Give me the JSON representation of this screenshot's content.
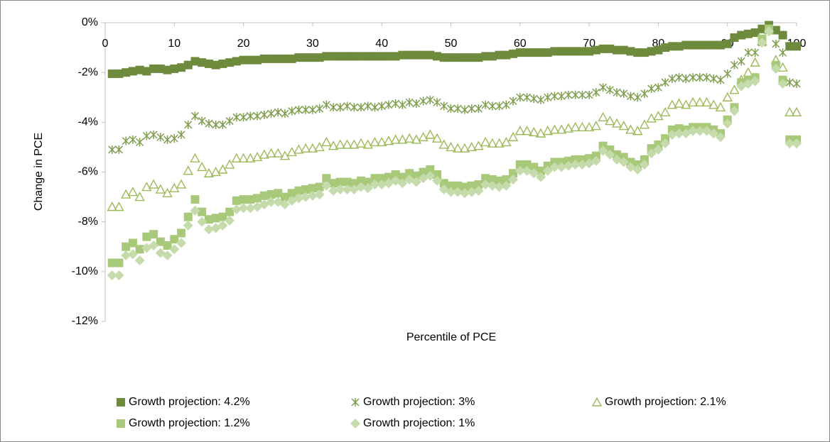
{
  "chart_data": {
    "type": "scatter",
    "y_label": "Change in PCE",
    "x_label": "Percentile of PCE",
    "xlim": [
      0,
      100
    ],
    "xticks": [
      0,
      10,
      20,
      30,
      40,
      50,
      60,
      70,
      80,
      90,
      100
    ],
    "ylim": [
      -12,
      0
    ],
    "yticks": [
      {
        "value": 0,
        "label": "0%"
      },
      {
        "value": -2,
        "label": "-2%"
      },
      {
        "value": -4,
        "label": "-4%"
      },
      {
        "value": -6,
        "label": "-6%"
      },
      {
        "value": -8,
        "label": "-8%"
      },
      {
        "value": -10,
        "label": "-10%"
      },
      {
        "value": -12,
        "label": "-12%"
      }
    ],
    "grid": false,
    "legend": "bottom",
    "x": [
      1,
      2,
      3,
      4,
      5,
      6,
      7,
      8,
      9,
      10,
      11,
      12,
      13,
      14,
      15,
      16,
      17,
      18,
      19,
      20,
      21,
      22,
      23,
      24,
      25,
      26,
      27,
      28,
      29,
      30,
      31,
      32,
      33,
      34,
      35,
      36,
      37,
      38,
      39,
      40,
      41,
      42,
      43,
      44,
      45,
      46,
      47,
      48,
      49,
      50,
      51,
      52,
      53,
      54,
      55,
      56,
      57,
      58,
      59,
      60,
      61,
      62,
      63,
      64,
      65,
      66,
      67,
      68,
      69,
      70,
      71,
      72,
      73,
      74,
      75,
      76,
      77,
      78,
      79,
      80,
      81,
      82,
      83,
      84,
      85,
      86,
      87,
      88,
      89,
      90,
      91,
      92,
      93,
      94,
      95,
      96,
      97,
      98,
      99,
      100
    ],
    "series": [
      {
        "name": "Growth projection: 4.2%",
        "color": "#6e8b3d",
        "marker": "square",
        "values": [
          -2.05,
          -2.05,
          -2.0,
          -1.95,
          -1.9,
          -1.95,
          -1.85,
          -1.85,
          -1.9,
          -1.85,
          -1.8,
          -1.7,
          -1.55,
          -1.6,
          -1.65,
          -1.7,
          -1.65,
          -1.6,
          -1.55,
          -1.5,
          -1.5,
          -1.5,
          -1.45,
          -1.45,
          -1.45,
          -1.45,
          -1.45,
          -1.4,
          -1.4,
          -1.4,
          -1.4,
          -1.35,
          -1.35,
          -1.35,
          -1.35,
          -1.35,
          -1.35,
          -1.35,
          -1.35,
          -1.35,
          -1.35,
          -1.35,
          -1.3,
          -1.3,
          -1.3,
          -1.3,
          -1.3,
          -1.35,
          -1.4,
          -1.4,
          -1.4,
          -1.4,
          -1.4,
          -1.4,
          -1.35,
          -1.35,
          -1.3,
          -1.3,
          -1.25,
          -1.2,
          -1.2,
          -1.2,
          -1.2,
          -1.2,
          -1.15,
          -1.15,
          -1.15,
          -1.15,
          -1.15,
          -1.15,
          -1.1,
          -1.05,
          -1.05,
          -1.1,
          -1.1,
          -1.15,
          -1.2,
          -1.2,
          -1.15,
          -1.1,
          -1.0,
          -0.95,
          -0.95,
          -0.9,
          -0.9,
          -0.9,
          -0.9,
          -0.9,
          -0.9,
          -0.85,
          -0.6,
          -0.5,
          -0.45,
          -0.4,
          -0.25,
          -0.1,
          -0.3,
          -0.5,
          -0.95,
          -0.95
        ]
      },
      {
        "name": "Growth projection: 3%",
        "color": "#7f9f4f",
        "marker": "x",
        "values": [
          -5.1,
          -5.1,
          -4.75,
          -4.7,
          -4.8,
          -4.55,
          -4.5,
          -4.6,
          -4.7,
          -4.65,
          -4.5,
          -4.1,
          -3.75,
          -3.95,
          -4.05,
          -4.1,
          -4.1,
          -3.95,
          -3.8,
          -3.8,
          -3.75,
          -3.75,
          -3.7,
          -3.65,
          -3.6,
          -3.65,
          -3.55,
          -3.5,
          -3.5,
          -3.5,
          -3.45,
          -3.3,
          -3.4,
          -3.4,
          -3.35,
          -3.4,
          -3.4,
          -3.35,
          -3.4,
          -3.35,
          -3.3,
          -3.25,
          -3.3,
          -3.2,
          -3.25,
          -3.15,
          -3.1,
          -3.2,
          -3.35,
          -3.45,
          -3.45,
          -3.5,
          -3.45,
          -3.45,
          -3.3,
          -3.35,
          -3.35,
          -3.3,
          -3.15,
          -3.0,
          -3.0,
          -3.05,
          -3.1,
          -3.0,
          -2.95,
          -2.95,
          -2.9,
          -2.9,
          -2.9,
          -2.9,
          -2.8,
          -2.6,
          -2.7,
          -2.8,
          -2.85,
          -2.95,
          -3.0,
          -2.85,
          -2.65,
          -2.6,
          -2.4,
          -2.25,
          -2.2,
          -2.25,
          -2.2,
          -2.2,
          -2.2,
          -2.25,
          -2.3,
          -2.05,
          -1.7,
          -1.55,
          -1.2,
          -1.2,
          -0.8,
          -0.2,
          -0.85,
          -1.2,
          -2.4,
          -2.45
        ]
      },
      {
        "name": "Growth projection: 2.1%",
        "color": "#9bbb59",
        "marker": "triangle",
        "values": [
          -7.4,
          -7.4,
          -6.9,
          -6.8,
          -7.0,
          -6.6,
          -6.5,
          -6.7,
          -6.85,
          -6.65,
          -6.5,
          -5.95,
          -5.45,
          -5.8,
          -6.05,
          -6.0,
          -5.9,
          -5.7,
          -5.45,
          -5.45,
          -5.45,
          -5.4,
          -5.3,
          -5.25,
          -5.25,
          -5.35,
          -5.2,
          -5.1,
          -5.05,
          -5.05,
          -5.0,
          -4.8,
          -4.95,
          -4.9,
          -4.9,
          -4.9,
          -4.85,
          -4.9,
          -4.8,
          -4.8,
          -4.75,
          -4.7,
          -4.7,
          -4.65,
          -4.7,
          -4.6,
          -4.5,
          -4.65,
          -4.9,
          -5.0,
          -5.05,
          -5.05,
          -5.0,
          -4.95,
          -4.8,
          -4.85,
          -4.85,
          -4.8,
          -4.6,
          -4.35,
          -4.35,
          -4.4,
          -4.45,
          -4.35,
          -4.3,
          -4.3,
          -4.25,
          -4.2,
          -4.2,
          -4.2,
          -4.15,
          -3.8,
          -3.95,
          -4.05,
          -4.15,
          -4.3,
          -4.35,
          -4.1,
          -3.85,
          -3.75,
          -3.6,
          -3.3,
          -3.25,
          -3.3,
          -3.2,
          -3.2,
          -3.2,
          -3.3,
          -3.4,
          -3.0,
          -2.7,
          -2.3,
          -2.0,
          -1.6,
          -0.75,
          -0.3,
          -1.5,
          -1.8,
          -3.6,
          -3.6
        ]
      },
      {
        "name": "Growth projection: 1.2%",
        "color": "#a9c97a",
        "marker": "square",
        "values": [
          -9.65,
          -9.65,
          -9.0,
          -8.85,
          -9.1,
          -8.6,
          -8.5,
          -8.8,
          -8.95,
          -8.7,
          -8.45,
          -7.8,
          -7.1,
          -7.6,
          -7.9,
          -7.85,
          -7.8,
          -7.6,
          -7.15,
          -7.1,
          -7.1,
          -7.05,
          -6.95,
          -6.9,
          -6.85,
          -7.0,
          -6.85,
          -6.75,
          -6.7,
          -6.65,
          -6.6,
          -6.25,
          -6.45,
          -6.4,
          -6.4,
          -6.45,
          -6.35,
          -6.4,
          -6.25,
          -6.25,
          -6.2,
          -6.1,
          -6.2,
          -6.05,
          -6.15,
          -6.0,
          -5.9,
          -6.1,
          -6.45,
          -6.55,
          -6.55,
          -6.6,
          -6.55,
          -6.5,
          -6.25,
          -6.3,
          -6.35,
          -6.3,
          -6.05,
          -5.7,
          -5.7,
          -5.8,
          -5.95,
          -5.75,
          -5.6,
          -5.6,
          -5.55,
          -5.5,
          -5.5,
          -5.45,
          -5.35,
          -4.95,
          -5.1,
          -5.3,
          -5.4,
          -5.6,
          -5.7,
          -5.5,
          -5.05,
          -4.9,
          -4.65,
          -4.3,
          -4.25,
          -4.3,
          -4.2,
          -4.2,
          -4.2,
          -4.3,
          -4.45,
          -3.9,
          -3.4,
          -2.4,
          -2.3,
          -2.2,
          -0.65,
          -0.25,
          -1.7,
          -2.3,
          -4.7,
          -4.7
        ]
      },
      {
        "name": "Growth projection: 1%",
        "color": "#c5dbab",
        "marker": "diamond",
        "values": [
          -10.15,
          -10.15,
          -9.35,
          -9.3,
          -9.55,
          -9.05,
          -8.95,
          -9.25,
          -9.35,
          -9.1,
          -8.85,
          -8.15,
          -7.55,
          -8.0,
          -8.3,
          -8.25,
          -8.15,
          -7.95,
          -7.5,
          -7.45,
          -7.45,
          -7.4,
          -7.3,
          -7.2,
          -7.2,
          -7.3,
          -7.15,
          -7.05,
          -7.0,
          -6.95,
          -6.9,
          -6.55,
          -6.75,
          -6.7,
          -6.7,
          -6.7,
          -6.6,
          -6.65,
          -6.5,
          -6.5,
          -6.45,
          -6.35,
          -6.45,
          -6.3,
          -6.4,
          -6.25,
          -6.15,
          -6.35,
          -6.7,
          -6.8,
          -6.8,
          -6.85,
          -6.8,
          -6.75,
          -6.5,
          -6.55,
          -6.6,
          -6.55,
          -6.3,
          -5.95,
          -5.95,
          -6.05,
          -6.2,
          -5.95,
          -5.8,
          -5.8,
          -5.75,
          -5.7,
          -5.7,
          -5.65,
          -5.55,
          -5.15,
          -5.3,
          -5.5,
          -5.6,
          -5.8,
          -5.9,
          -5.7,
          -5.25,
          -5.1,
          -4.85,
          -4.5,
          -4.45,
          -4.45,
          -4.35,
          -4.35,
          -4.35,
          -4.45,
          -4.6,
          -4.05,
          -3.55,
          -2.55,
          -2.45,
          -2.35,
          -0.8,
          -0.35,
          -1.85,
          -2.45,
          -4.85,
          -4.85
        ]
      }
    ]
  }
}
